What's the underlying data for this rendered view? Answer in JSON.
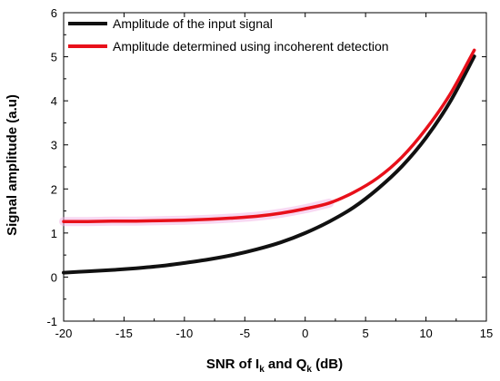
{
  "chart_data": {
    "type": "line",
    "title": "",
    "xlabel": {
      "prefix": "SNR of I",
      "sub1": "k",
      "middle": " and Q",
      "sub2": "k",
      "suffix": " (dB)"
    },
    "ylabel": "Signal amplitude (a.u)",
    "xlim": [
      -20,
      15
    ],
    "ylim": [
      -1,
      6
    ],
    "xticks": [
      -20,
      -15,
      -10,
      -5,
      0,
      5,
      10,
      15
    ],
    "yticks": [
      -1,
      0,
      1,
      2,
      3,
      4,
      5,
      6
    ],
    "grid": false,
    "legend_position": "top-left",
    "series": [
      {
        "name": "Amplitude of the input signal",
        "color": "#111111",
        "x": [
          -20,
          -18,
          -16,
          -14,
          -12,
          -10,
          -8,
          -6,
          -4,
          -2,
          0,
          2,
          4,
          6,
          8,
          10,
          12,
          14
        ],
        "y": [
          0.1,
          0.13,
          0.16,
          0.2,
          0.25,
          0.32,
          0.4,
          0.5,
          0.63,
          0.79,
          1.0,
          1.26,
          1.58,
          2.0,
          2.51,
          3.16,
          3.98,
          5.01
        ]
      },
      {
        "name": "Amplitude determined using incoherent detection",
        "color": "#e8101a",
        "x": [
          -20,
          -18,
          -16,
          -14,
          -12,
          -10,
          -8,
          -6,
          -4,
          -2,
          0,
          2,
          4,
          6,
          8,
          10,
          12,
          14
        ],
        "y": [
          1.26,
          1.26,
          1.27,
          1.27,
          1.28,
          1.29,
          1.31,
          1.34,
          1.38,
          1.45,
          1.55,
          1.68,
          1.92,
          2.25,
          2.72,
          3.36,
          4.15,
          5.15
        ]
      }
    ]
  }
}
